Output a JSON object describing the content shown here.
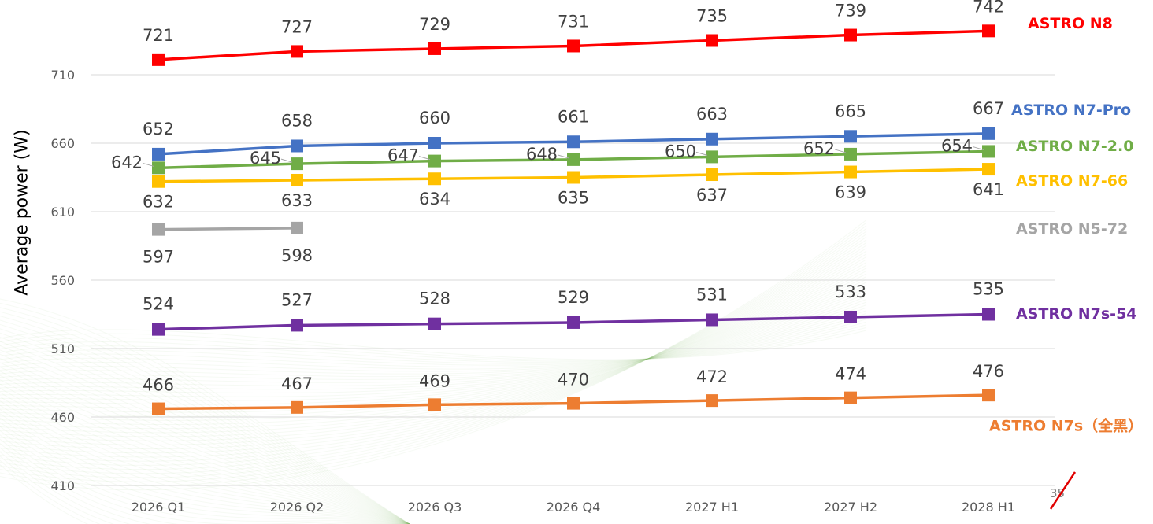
{
  "chart_data": {
    "type": "line",
    "title": "",
    "xlabel": "",
    "ylabel": "Average power (W)",
    "categories": [
      "2026 Q1",
      "2026 Q2",
      "2026 Q3",
      "2026 Q4",
      "2027 H1",
      "2027 H2",
      "2028 H1"
    ],
    "yticks": [
      410,
      460,
      510,
      560,
      610,
      660,
      710
    ],
    "ylim": [
      410,
      760
    ],
    "grid": true,
    "legend_placement": "right, inline at series ends",
    "series": [
      {
        "name": "ASTRO N8",
        "color": "#ff0000",
        "values": [
          721,
          727,
          729,
          731,
          735,
          739,
          742
        ]
      },
      {
        "name": "ASTRO N7-Pro",
        "color": "#4472c4",
        "values": [
          652,
          658,
          660,
          661,
          663,
          665,
          667
        ]
      },
      {
        "name": "ASTRO N7-2.0",
        "color": "#70ad47",
        "values": [
          642,
          645,
          647,
          648,
          650,
          652,
          654
        ]
      },
      {
        "name": "ASTRO N7-66",
        "color": "#ffc000",
        "values": [
          632,
          633,
          634,
          635,
          637,
          639,
          641
        ]
      },
      {
        "name": "ASTRO N5-72",
        "color": "#a5a5a5",
        "values": [
          597,
          598,
          null,
          null,
          null,
          null,
          null
        ]
      },
      {
        "name": "ASTRO N7s-54",
        "color": "#7030a0",
        "values": [
          524,
          527,
          528,
          529,
          531,
          533,
          535
        ]
      },
      {
        "name": "ASTRO N7s（全黑）",
        "color": "#ed7d31",
        "values": [
          466,
          467,
          469,
          470,
          472,
          474,
          476
        ]
      }
    ]
  },
  "page_number": "35"
}
